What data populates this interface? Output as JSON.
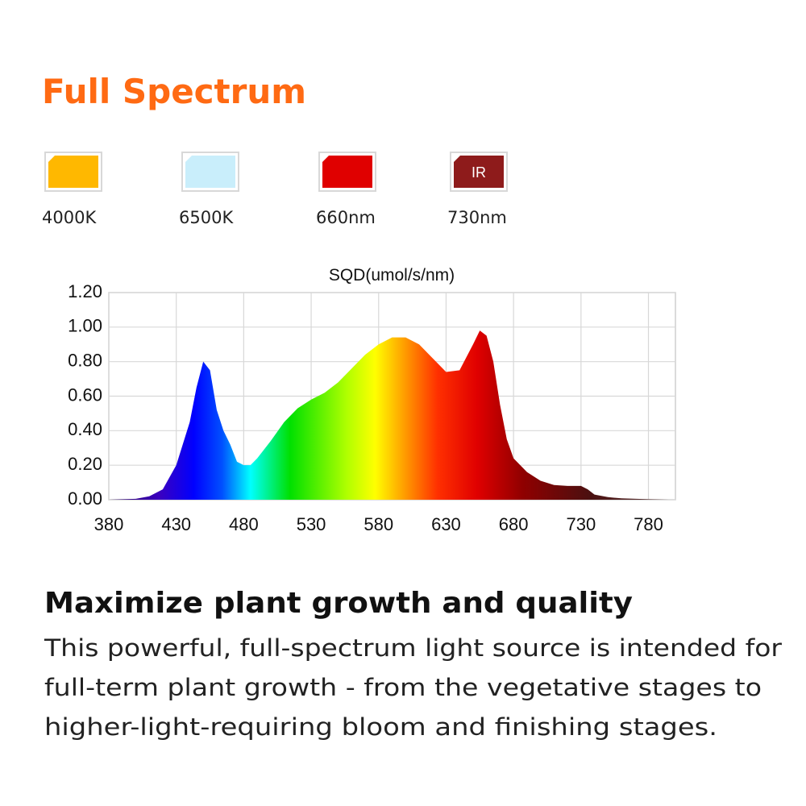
{
  "header": {
    "title": "Full Spectrum"
  },
  "legend": [
    {
      "label": "4000K",
      "color": "#ffb800"
    },
    {
      "label": "6500K",
      "color": "#c9eefb"
    },
    {
      "label": "660nm",
      "color": "#e00000"
    },
    {
      "label": "730nm",
      "color": "#8e1b1b",
      "swatch_text": "IR"
    }
  ],
  "chart_data": {
    "type": "area",
    "title": "SQD(umol/s/nm)",
    "x": [
      380,
      400,
      410,
      420,
      430,
      440,
      445,
      450,
      455,
      460,
      465,
      470,
      475,
      480,
      485,
      490,
      500,
      510,
      520,
      530,
      540,
      550,
      560,
      570,
      580,
      590,
      600,
      610,
      620,
      630,
      640,
      650,
      655,
      660,
      665,
      670,
      675,
      680,
      690,
      700,
      710,
      720,
      730,
      735,
      740,
      750,
      760,
      780,
      795
    ],
    "y": [
      0,
      0.005,
      0.02,
      0.06,
      0.2,
      0.45,
      0.65,
      0.8,
      0.75,
      0.52,
      0.4,
      0.32,
      0.22,
      0.2,
      0.2,
      0.24,
      0.34,
      0.45,
      0.53,
      0.58,
      0.62,
      0.68,
      0.76,
      0.84,
      0.9,
      0.94,
      0.94,
      0.9,
      0.82,
      0.74,
      0.75,
      0.9,
      0.98,
      0.95,
      0.8,
      0.55,
      0.35,
      0.24,
      0.16,
      0.11,
      0.085,
      0.08,
      0.08,
      0.06,
      0.03,
      0.015,
      0.008,
      0.003,
      0
    ],
    "xlim": [
      380,
      800
    ],
    "ylim": [
      0,
      1.2
    ],
    "xticks": [
      380,
      430,
      480,
      530,
      580,
      630,
      680,
      730,
      780
    ],
    "yticks": [
      {
        "value": 0,
        "label": "0.00"
      },
      {
        "value": 0.2,
        "label": "0.20"
      },
      {
        "value": 0.4,
        "label": "0.40"
      },
      {
        "value": 0.6,
        "label": "0.60"
      },
      {
        "value": 0.8,
        "label": "0.80"
      },
      {
        "value": 1,
        "label": "1.00"
      },
      {
        "value": 1.2,
        "label": "1.20"
      }
    ],
    "grid": true
  },
  "body": {
    "heading": "Maximize plant growth and quality",
    "lines": [
      "This powerful, full-spectrum light source is intended for",
      "full-term plant growth - from the vegetative stages to",
      "higher-light-requiring bloom and finishing stages."
    ]
  }
}
